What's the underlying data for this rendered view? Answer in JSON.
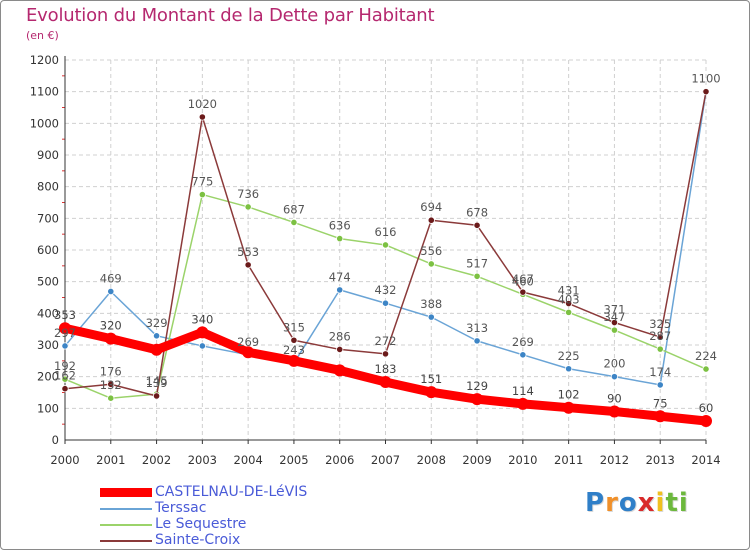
{
  "title": "Evolution du Montant de la Dette par Habitant",
  "subtitle": "(en €)",
  "logo": {
    "letters": [
      "P",
      "r",
      "o",
      "x",
      "i",
      "t",
      "i"
    ],
    "colors": [
      "#2f7fc8",
      "#f0902a",
      "#2f7fc8",
      "#d92a2a",
      "#f0c020",
      "#6cb83c",
      "#6cb83c"
    ]
  },
  "chart_data": {
    "type": "line",
    "x": [
      2000,
      2001,
      2002,
      2003,
      2004,
      2005,
      2006,
      2007,
      2008,
      2009,
      2010,
      2011,
      2012,
      2013,
      2014
    ],
    "ylim": [
      0,
      1200
    ],
    "yticks": [
      0,
      100,
      200,
      300,
      400,
      500,
      600,
      700,
      800,
      900,
      1000,
      1100,
      1200
    ],
    "grid": true,
    "legend_position": "bottom-left",
    "series": [
      {
        "name": "CASTELNAU-DE-LéVIS",
        "color": "#ff0000",
        "marker_color": "#ff0000",
        "values": [
          353,
          320,
          285,
          340,
          277,
          250,
          220,
          183,
          151,
          129,
          114,
          102,
          90,
          75,
          60
        ],
        "labels": [
          "353",
          "320",
          "",
          "340",
          "",
          "",
          "",
          "183",
          "151",
          "129",
          "114",
          "102",
          "90",
          "75",
          "60"
        ],
        "emphasis": true
      },
      {
        "name": "Terssac",
        "color": "#6aa4d6",
        "marker_color": "#3d85c6",
        "values": [
          297,
          469,
          329,
          297,
          269,
          243,
          474,
          432,
          388,
          313,
          269,
          225,
          200,
          174,
          1100
        ],
        "labels": [
          "297",
          "469",
          "329",
          "",
          "269",
          "243",
          "474",
          "432",
          "388",
          "313",
          "269",
          "225",
          "200",
          "174",
          ""
        ]
      },
      {
        "name": "Le Sequestre",
        "color": "#9bd36a",
        "marker_color": "#7cc142",
        "values": [
          192,
          132,
          145,
          775,
          736,
          687,
          636,
          616,
          556,
          517,
          460,
          403,
          347,
          287,
          224
        ],
        "labels": [
          "192",
          "132",
          "145",
          "775",
          "736",
          "687",
          "636",
          "616",
          "556",
          "517",
          "460",
          "403",
          "347",
          "287",
          "224"
        ]
      },
      {
        "name": "Sainte-Croix",
        "color": "#8b3a3a",
        "marker_color": "#6b1a1a",
        "values": [
          162,
          176,
          139,
          1020,
          553,
          315,
          286,
          272,
          694,
          678,
          467,
          431,
          371,
          325,
          1100
        ],
        "labels": [
          "162",
          "176",
          "139",
          "1020",
          "553",
          "315",
          "286",
          "272",
          "694",
          "678",
          "467",
          "431",
          "371",
          "325",
          "1100"
        ]
      }
    ]
  }
}
